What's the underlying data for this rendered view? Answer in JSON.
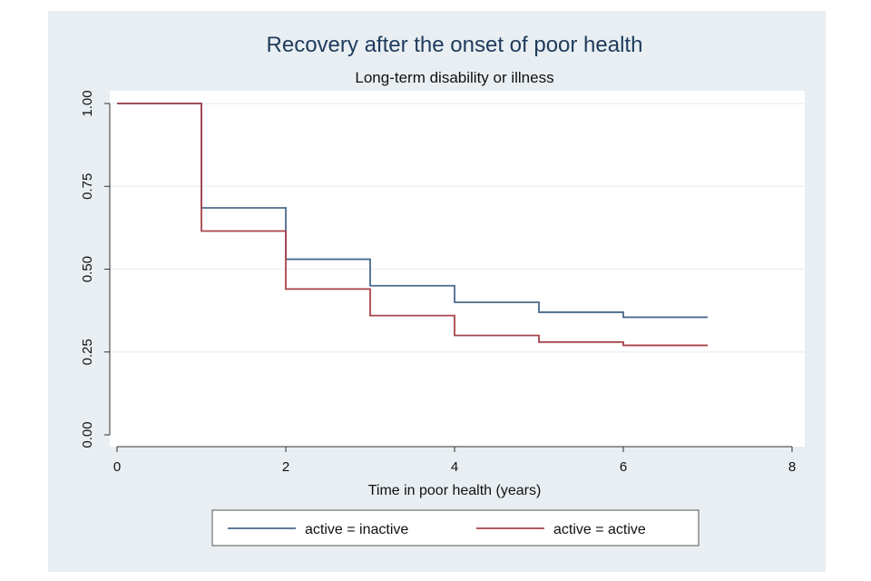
{
  "chart_data": {
    "type": "line",
    "title": "Recovery after the onset of poor health",
    "subtitle": "Long-term disability or illness",
    "xlabel": "Time in poor health (years)",
    "ylabel": "",
    "xlim": [
      0,
      8
    ],
    "ylim": [
      0,
      1
    ],
    "xticks": [
      0,
      2,
      4,
      6,
      8
    ],
    "xtick_labels": [
      "0",
      "2",
      "4",
      "6",
      "8"
    ],
    "yticks": [
      0,
      0.25,
      0.5,
      0.75,
      1
    ],
    "ytick_labels": [
      "0.00",
      "0.25",
      "0.50",
      "0.75",
      "1.00"
    ],
    "grid": true,
    "step": true,
    "legend_position": "bottom",
    "series": [
      {
        "name": "active = inactive",
        "color": "#4a6a8c",
        "x": [
          0,
          1,
          2,
          3,
          4,
          5,
          6,
          7
        ],
        "y": [
          1.0,
          0.685,
          0.53,
          0.45,
          0.4,
          0.37,
          0.355,
          0.355
        ]
      },
      {
        "name": "active = active",
        "color": "#a8434a",
        "x": [
          0,
          1,
          2,
          3,
          4,
          5,
          6,
          7
        ],
        "y": [
          1.0,
          0.615,
          0.44,
          0.36,
          0.3,
          0.28,
          0.27,
          0.27
        ]
      }
    ]
  }
}
